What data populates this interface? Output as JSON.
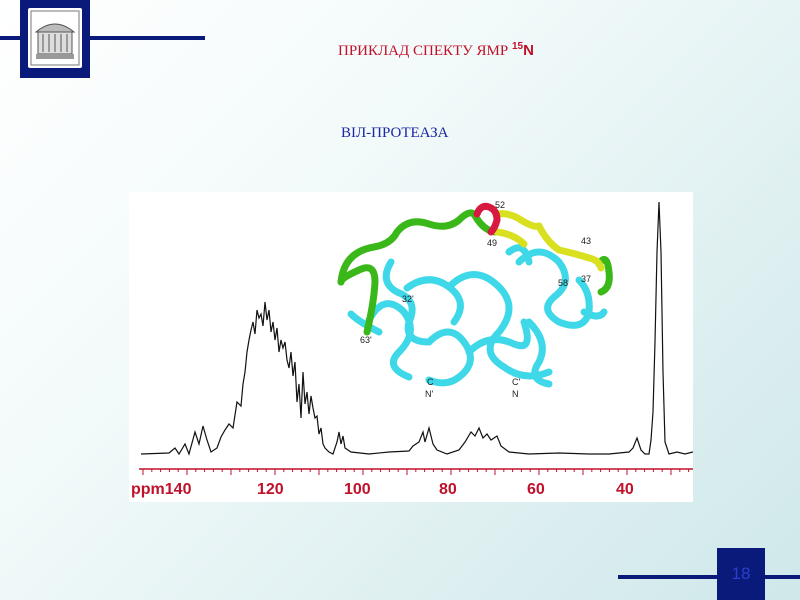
{
  "slide": {
    "title_main": "ПРИКЛАД СПЕКТУ ЯМР ",
    "title_sup": "15",
    "title_n": "N",
    "subtitle": "ВІЛ-ПРОТЕАЗА",
    "page_number": "18"
  },
  "figure": {
    "axis_labels": [
      {
        "text": "ppm140"
      },
      {
        "text": "120"
      },
      {
        "text": "100"
      },
      {
        "text": "80"
      },
      {
        "text": "60"
      },
      {
        "text": "40"
      }
    ],
    "structure_labels": [
      {
        "text": "52"
      },
      {
        "text": "49"
      },
      {
        "text": "43"
      },
      {
        "text": "37"
      },
      {
        "text": "58"
      },
      {
        "text": "32'"
      },
      {
        "text": "63'"
      },
      {
        "text": "C"
      },
      {
        "text": "N'"
      },
      {
        "text": "C'"
      },
      {
        "text": "N"
      }
    ]
  },
  "colors": {
    "navy": "#0a1a7a",
    "title_red": "#c0112a",
    "subtitle_blue": "#1a25a8",
    "ribbon_cyan": "#3ed8e8",
    "ribbon_green": "#3ab81a",
    "ribbon_yellow": "#d8e020",
    "ribbon_red": "#d81a40"
  }
}
